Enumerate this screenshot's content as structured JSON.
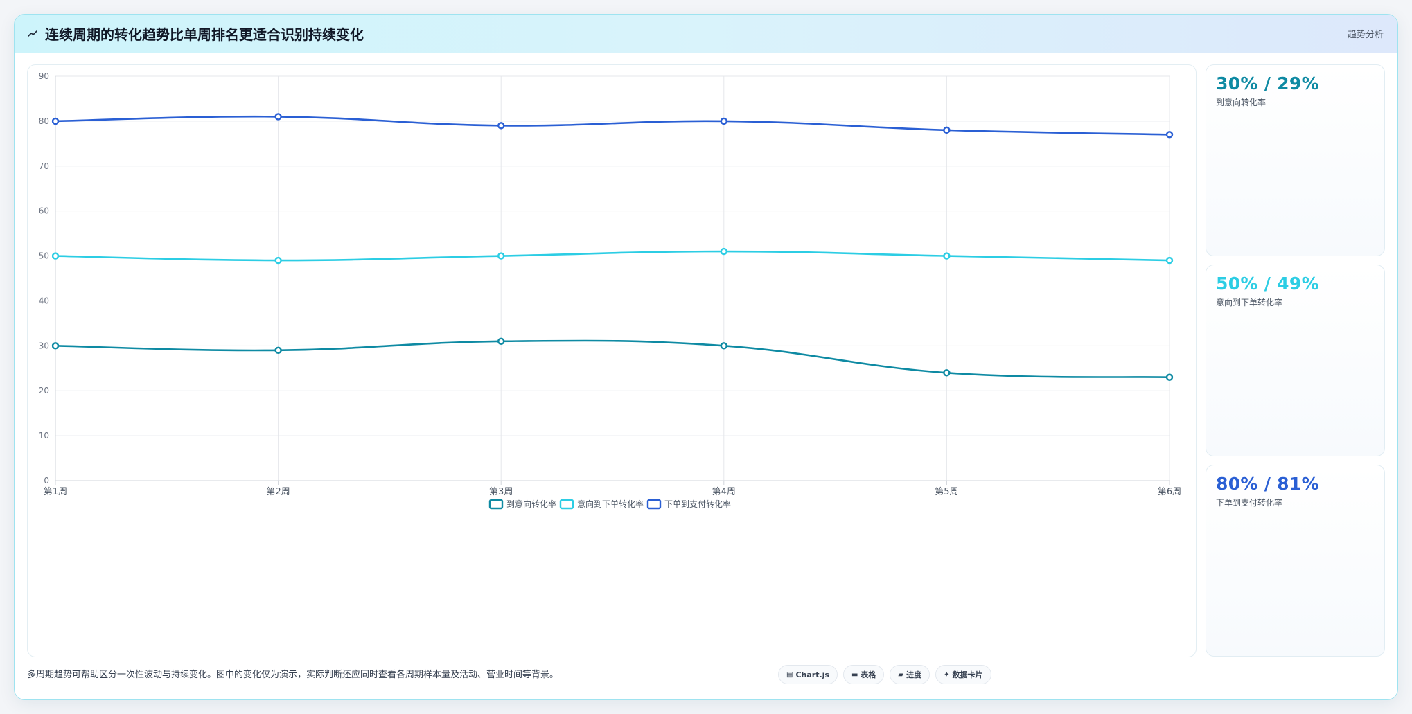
{
  "header": {
    "title": "连续周期的转化趋势比单周排名更适合识别持续变化",
    "title_icon": "trend-line-icon",
    "tag": "趋势分析"
  },
  "chart_data": {
    "type": "line",
    "categories": [
      "第1周",
      "第2周",
      "第3周",
      "第4周",
      "第5周",
      "第6周"
    ],
    "series": [
      {
        "name": "到意向转化率",
        "color": "#0e8aa3",
        "values": [
          30,
          29,
          31,
          30,
          24,
          23
        ]
      },
      {
        "name": "意向到下单转化率",
        "color": "#2ccde4",
        "values": [
          50,
          49,
          50,
          51,
          50,
          49
        ]
      },
      {
        "name": "下单到支付转化率",
        "color": "#2a5fd4",
        "values": [
          80,
          81,
          79,
          80,
          78,
          77
        ]
      }
    ],
    "ylim": [
      0,
      90
    ],
    "yticks": [
      0,
      10,
      20,
      30,
      40,
      50,
      60,
      70,
      80,
      90
    ],
    "grid": true,
    "legend": "bottom-center",
    "xlabel": "",
    "ylabel": "",
    "title": ""
  },
  "stats": [
    {
      "value": "30% / 29%",
      "label": "到意向转化率",
      "color": "#0e8aa3"
    },
    {
      "value": "50% / 49%",
      "label": "意向到下单转化率",
      "color": "#2ccde4"
    },
    {
      "value": "80% / 81%",
      "label": "下单到支付转化率",
      "color": "#2a5fd4"
    }
  ],
  "footer": {
    "note": "多周期趋势可帮助区分一次性波动与持续变化。图中的变化仅为演示，实际判断还应同时查看各周期样本量及活动、营业时间等背景。",
    "chips": [
      {
        "icon": "chart-icon",
        "glyph": "▤",
        "label": "Chart.js"
      },
      {
        "icon": "table-icon",
        "glyph": "▬",
        "label": "表格"
      },
      {
        "icon": "progress-icon",
        "glyph": "▰",
        "label": "进度"
      },
      {
        "icon": "card-icon",
        "glyph": "✦",
        "label": "数据卡片"
      }
    ]
  }
}
